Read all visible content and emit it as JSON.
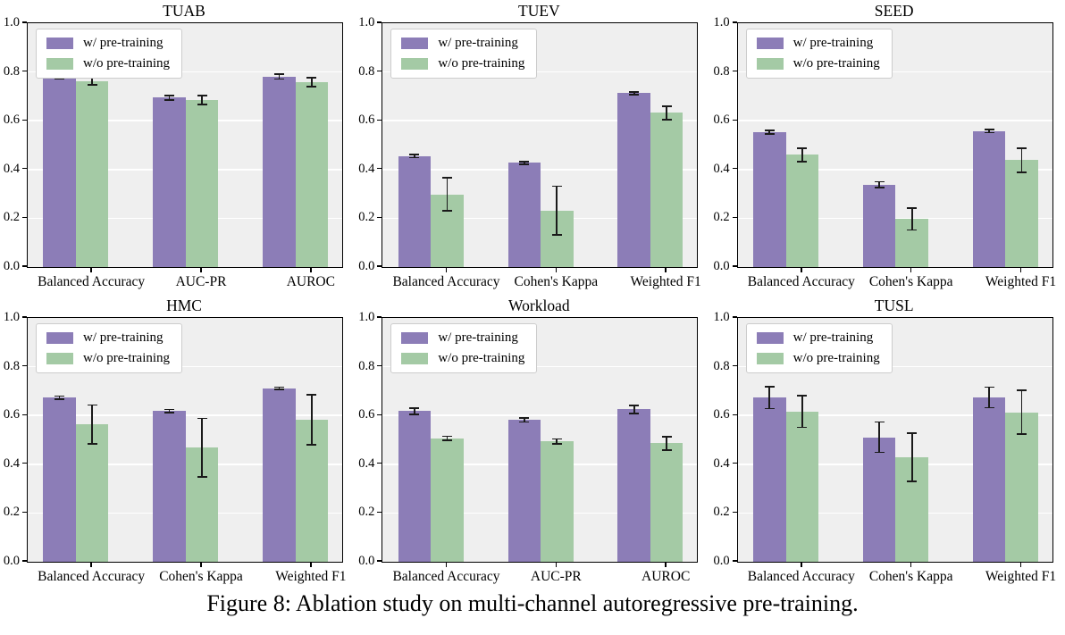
{
  "figure": {
    "caption": "Figure 8: Ablation study on multi-channel autoregressive pre-training."
  },
  "legend": {
    "items": [
      {
        "label": "w/ pre-training",
        "color": "#8C7DB7"
      },
      {
        "label": "w/o pre-training",
        "color": "#A4CAA5"
      }
    ],
    "position": "upper left"
  },
  "colors": {
    "with_pretraining": "#8C7DB7",
    "without_pretraining": "#A4CAA5",
    "plot_background": "#EFEFEF",
    "gridline": "#FFFFFF",
    "error_bar": "#1A1A1A",
    "spine": "#000000"
  },
  "axes": {
    "ylim": [
      0,
      1
    ],
    "yticks": [
      "0.0",
      "0.2",
      "0.4",
      "0.6",
      "0.8",
      "1.0"
    ],
    "grid": "horizontal"
  },
  "chart_data": [
    {
      "type": "bar",
      "title": "TUAB",
      "categories": [
        "Balanced Accuracy",
        "AUC-PR",
        "AUROC"
      ],
      "ylim": [
        0,
        1
      ],
      "grid": true,
      "legend_position": "upper left",
      "series": [
        {
          "name": "w/ pre-training",
          "values": [
            0.783,
            0.695,
            0.781
          ],
          "errors": [
            0.009,
            0.009,
            0.01
          ]
        },
        {
          "name": "w/o pre-training",
          "values": [
            0.762,
            0.686,
            0.758
          ],
          "errors": [
            0.015,
            0.018,
            0.018
          ]
        }
      ]
    },
    {
      "type": "bar",
      "title": "TUEV",
      "categories": [
        "Balanced Accuracy",
        "Cohen's Kappa",
        "Weighted F1"
      ],
      "ylim": [
        0,
        1
      ],
      "grid": true,
      "legend_position": "upper left",
      "series": [
        {
          "name": "w/ pre-training",
          "values": [
            0.455,
            0.427,
            0.713
          ],
          "errors": [
            0.006,
            0.006,
            0.005
          ]
        },
        {
          "name": "w/o pre-training",
          "values": [
            0.298,
            0.232,
            0.632
          ],
          "errors": [
            0.068,
            0.1,
            0.028
          ]
        }
      ]
    },
    {
      "type": "bar",
      "title": "SEED",
      "categories": [
        "Balanced Accuracy",
        "Cohen's Kappa",
        "Weighted F1"
      ],
      "ylim": [
        0,
        1
      ],
      "grid": true,
      "legend_position": "upper left",
      "series": [
        {
          "name": "w/ pre-training",
          "values": [
            0.553,
            0.338,
            0.558
          ],
          "errors": [
            0.008,
            0.012,
            0.007
          ]
        },
        {
          "name": "w/o pre-training",
          "values": [
            0.46,
            0.197,
            0.438
          ],
          "errors": [
            0.028,
            0.045,
            0.05
          ]
        }
      ]
    },
    {
      "type": "bar",
      "title": "HMC",
      "categories": [
        "Balanced Accuracy",
        "Cohen's Kappa",
        "Weighted F1"
      ],
      "ylim": [
        0,
        1
      ],
      "grid": true,
      "legend_position": "upper left",
      "series": [
        {
          "name": "w/ pre-training",
          "values": [
            0.673,
            0.618,
            0.712
          ],
          "errors": [
            0.007,
            0.007,
            0.004
          ]
        },
        {
          "name": "w/o pre-training",
          "values": [
            0.563,
            0.468,
            0.582
          ],
          "errors": [
            0.08,
            0.12,
            0.102
          ]
        }
      ]
    },
    {
      "type": "bar",
      "title": "Workload",
      "categories": [
        "Balanced Accuracy",
        "AUC-PR",
        "AUROC"
      ],
      "ylim": [
        0,
        1
      ],
      "grid": true,
      "legend_position": "upper left",
      "series": [
        {
          "name": "w/ pre-training",
          "values": [
            0.618,
            0.582,
            0.625
          ],
          "errors": [
            0.013,
            0.009,
            0.016
          ]
        },
        {
          "name": "w/o pre-training",
          "values": [
            0.507,
            0.494,
            0.486
          ],
          "errors": [
            0.008,
            0.01,
            0.027
          ]
        }
      ]
    },
    {
      "type": "bar",
      "title": "TUSL",
      "categories": [
        "Balanced Accuracy",
        "Cohen's Kappa",
        "Weighted F1"
      ],
      "ylim": [
        0,
        1
      ],
      "grid": true,
      "legend_position": "upper left",
      "series": [
        {
          "name": "w/ pre-training",
          "values": [
            0.673,
            0.511,
            0.674
          ],
          "errors": [
            0.045,
            0.062,
            0.042
          ]
        },
        {
          "name": "w/o pre-training",
          "values": [
            0.616,
            0.429,
            0.613
          ],
          "errors": [
            0.065,
            0.098,
            0.09
          ]
        }
      ]
    }
  ]
}
